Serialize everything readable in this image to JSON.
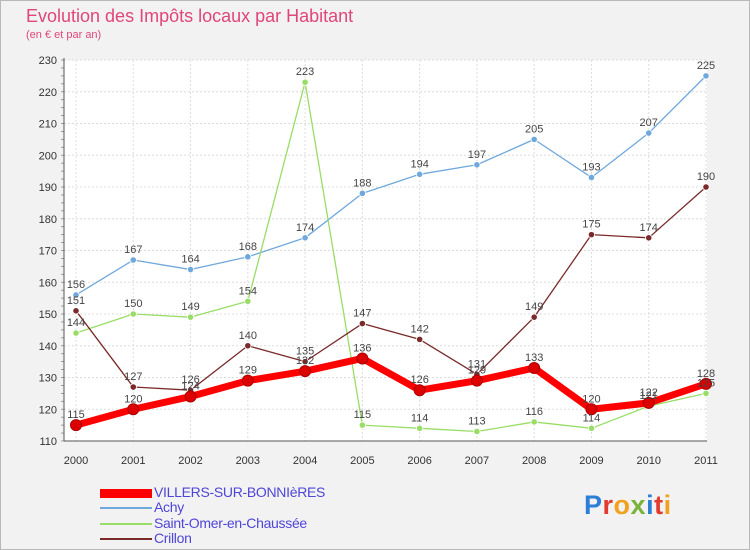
{
  "chart_data": {
    "type": "line",
    "title": "Evolution des Impôts locaux par Habitant",
    "subtitle": "(en € et par an)",
    "xlabel": "",
    "ylabel": "",
    "ylim": [
      110,
      230
    ],
    "yticks": [
      110,
      120,
      130,
      140,
      150,
      160,
      170,
      180,
      190,
      200,
      210,
      220,
      230
    ],
    "grid": true,
    "legend_position": "bottom-left",
    "categories": [
      "2000",
      "2001",
      "2002",
      "2003",
      "2004",
      "2005",
      "2006",
      "2007",
      "2008",
      "2009",
      "2010",
      "2011"
    ],
    "series": [
      {
        "name": "VILLERS-SUR-BONNIèRES",
        "color": "#ff0000",
        "values": [
          115,
          120,
          124,
          129,
          132,
          136,
          126,
          129,
          133,
          120,
          122,
          128
        ]
      },
      {
        "name": "Achy",
        "color": "#6fa8dc",
        "values": [
          156,
          167,
          164,
          168,
          174,
          188,
          194,
          197,
          205,
          193,
          207,
          225
        ]
      },
      {
        "name": "Saint-Omer-en-Chaussée",
        "color": "#99dd66",
        "values": [
          144,
          150,
          149,
          154,
          223,
          115,
          114,
          113,
          116,
          114,
          121,
          125
        ]
      },
      {
        "name": "Crillon",
        "color": "#7a2a2a",
        "values": [
          151,
          127,
          126,
          140,
          135,
          147,
          142,
          131,
          149,
          175,
          174,
          190
        ]
      }
    ]
  },
  "logo": {
    "letters": [
      "P",
      "r",
      "o",
      "x",
      "i",
      "t",
      "i"
    ]
  }
}
